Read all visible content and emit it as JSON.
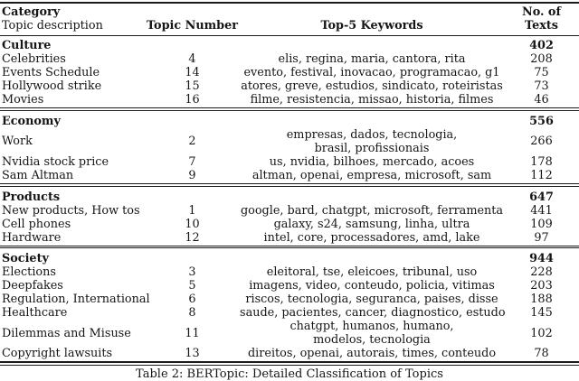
{
  "page": {
    "caption": "Table 2: BERTopic: Detailed Classification of Topics"
  },
  "table": {
    "header": {
      "col1_line1": "Category",
      "col1_line2": "Topic description",
      "col2": "Topic Number",
      "col3": "Top-5 Keywords",
      "col4": "No. of Texts"
    },
    "sections": [
      {
        "category": "Culture",
        "total": "402",
        "rows": [
          {
            "desc": "Celebrities",
            "num": "4",
            "keywords": [
              "elis, regina, maria, cantora, rita"
            ],
            "count": "208"
          },
          {
            "desc": "Events Schedule",
            "num": "14",
            "keywords": [
              "evento, festival, inovacao, programacao, g1"
            ],
            "count": "75"
          },
          {
            "desc": "Hollywood strike",
            "num": "15",
            "keywords": [
              "atores, greve, estudios, sindicato, roteiristas"
            ],
            "count": "73"
          },
          {
            "desc": "Movies",
            "num": "16",
            "keywords": [
              "filme, resistencia, missao, historia, filmes"
            ],
            "count": "46"
          }
        ]
      },
      {
        "category": "Economy",
        "total": "556",
        "rows": [
          {
            "desc": "Work",
            "num": "2",
            "keywords": [
              "empresas, dados, tecnologia,",
              "brasil, profissionais"
            ],
            "count": "266"
          },
          {
            "desc": "Nvidia stock price",
            "num": "7",
            "keywords": [
              "us, nvidia, bilhoes, mercado, acoes"
            ],
            "count": "178"
          },
          {
            "desc": "Sam Altman",
            "num": "9",
            "keywords": [
              "altman, openai, empresa, microsoft, sam"
            ],
            "count": "112"
          }
        ]
      },
      {
        "category": "Products",
        "total": "647",
        "rows": [
          {
            "desc": "New products, How tos",
            "num": "1",
            "keywords": [
              "google, bard, chatgpt, microsoft, ferramenta"
            ],
            "count": "441"
          },
          {
            "desc": "Cell phones",
            "num": "10",
            "keywords": [
              "galaxy, s24, samsung, linha, ultra"
            ],
            "count": "109"
          },
          {
            "desc": "Hardware",
            "num": "12",
            "keywords": [
              "intel, core, processadores, amd, lake"
            ],
            "count": "97"
          }
        ]
      },
      {
        "category": "Society",
        "total": "944",
        "rows": [
          {
            "desc": "Elections",
            "num": "3",
            "keywords": [
              "eleitoral, tse, eleicoes, tribunal, uso"
            ],
            "count": "228"
          },
          {
            "desc": "Deepfakes",
            "num": "5",
            "keywords": [
              "imagens, video, conteudo, policia, vitimas"
            ],
            "count": "203"
          },
          {
            "desc": "Regulation, International",
            "num": "6",
            "keywords": [
              "riscos, tecnologia, seguranca, paises, disse"
            ],
            "count": "188"
          },
          {
            "desc": "Healthcare",
            "num": "8",
            "keywords": [
              "saude, pacientes, cancer, diagnostico, estudo"
            ],
            "count": "145"
          },
          {
            "desc": "Dilemmas and Misuse",
            "num": "11",
            "keywords": [
              "chatgpt, humanos, humano,",
              "modelos, tecnologia"
            ],
            "count": "102"
          },
          {
            "desc": "Copyright lawsuits",
            "num": "13",
            "keywords": [
              "direitos, openai, autorais, times, conteudo"
            ],
            "count": "78"
          }
        ]
      }
    ]
  }
}
